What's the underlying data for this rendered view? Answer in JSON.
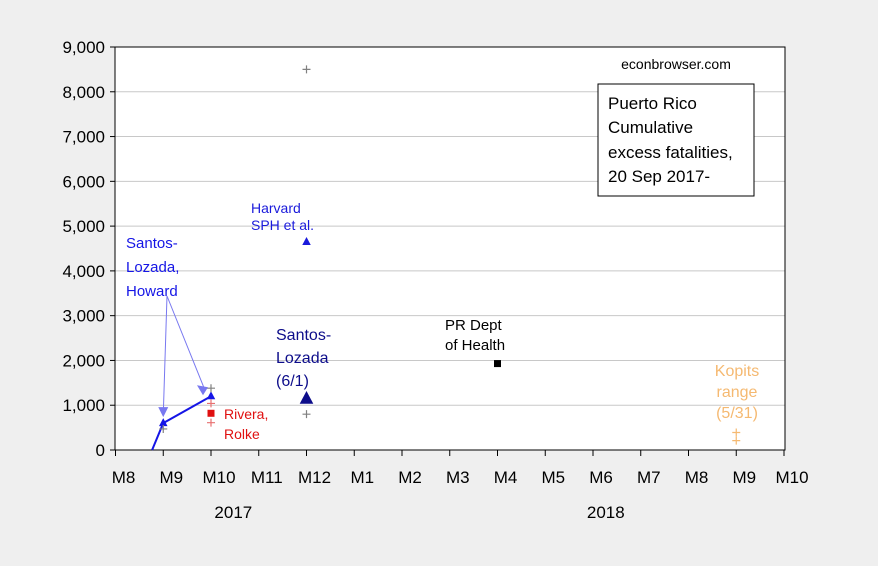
{
  "chart_data": {
    "type": "scatter",
    "title": "",
    "xlabel": "",
    "ylabel": "",
    "watermark": "econbrowser.com",
    "legend_box": {
      "lines": [
        "Puerto Rico",
        "Cumulative",
        "excess fatalities,",
        "20 Sep 2017-"
      ],
      "position": "top-right"
    },
    "x_ticks": [
      "M8",
      "M9",
      "M10",
      "M11",
      "M12",
      "M1",
      "M2",
      "M3",
      "M4",
      "M5",
      "M6",
      "M7",
      "M8",
      "M9",
      "M10"
    ],
    "year_labels": [
      {
        "label": "2017",
        "tick_index": 2.3
      },
      {
        "label": "2018",
        "tick_index": 10.1
      }
    ],
    "y_ticks": [
      "0",
      "1,000",
      "2,000",
      "3,000",
      "4,000",
      "5,000",
      "6,000",
      "7,000",
      "8,000",
      "9,000"
    ],
    "ylim": [
      0,
      9000
    ],
    "grid": "horizontal",
    "colors": {
      "santos_howard": "#1515e6",
      "santos_howard_arrow": "#7878f0",
      "santos_lozada_june": "#0d0d8a",
      "harvard": "#1a1adb",
      "rivera_rolke": "#e01010",
      "pr_health": "#000000",
      "kopits": "#f5b971",
      "estimate_range": "#808080"
    },
    "series": [
      {
        "name": "Santos-Lozada, Howard",
        "lines": [
          "Santos-",
          "Lozada,",
          "Howard"
        ],
        "marker": "triangle-line",
        "points": [
          {
            "x": 0.65,
            "y": -300
          },
          {
            "x": 1,
            "y": 600
          },
          {
            "x": 2,
            "y": 1200
          }
        ]
      },
      {
        "name": "Harvard SPH et al.",
        "lines": [
          "Harvard",
          "SPH et al."
        ],
        "marker": "triangle",
        "points": [
          {
            "x": 4,
            "y": 4645
          }
        ],
        "range": [
          {
            "x": 4,
            "y": 8500
          },
          {
            "x": 4,
            "y": 800
          }
        ]
      },
      {
        "name": "Santos-Lozada (6/1)",
        "lines": [
          "Santos-",
          "Lozada",
          "(6/1)"
        ],
        "marker": "triangle-large",
        "points": [
          {
            "x": 4,
            "y": 1140
          }
        ]
      },
      {
        "name": "Rivera, Rolke",
        "lines": [
          "Rivera,",
          "Rolke"
        ],
        "marker": "square",
        "points": [
          {
            "x": 2,
            "y": 820
          }
        ],
        "range": [
          {
            "x": 2,
            "y": 1040
          },
          {
            "x": 2,
            "y": 610
          }
        ]
      },
      {
        "name": "PR Dept of Health",
        "lines": [
          "PR Dept",
          "of Health"
        ],
        "marker": "square",
        "points": [
          {
            "x": 8,
            "y": 1930
          }
        ]
      },
      {
        "name": "Kopits range (5/31)",
        "lines": [
          "Kopits",
          "range",
          "(5/31)"
        ],
        "marker": "plus",
        "points": [
          {
            "x": 13,
            "y": 390
          },
          {
            "x": 13,
            "y": 210
          }
        ]
      }
    ],
    "gray_markers": [
      {
        "x": 1,
        "y": 470
      },
      {
        "x": 2,
        "y": 1380
      }
    ]
  }
}
